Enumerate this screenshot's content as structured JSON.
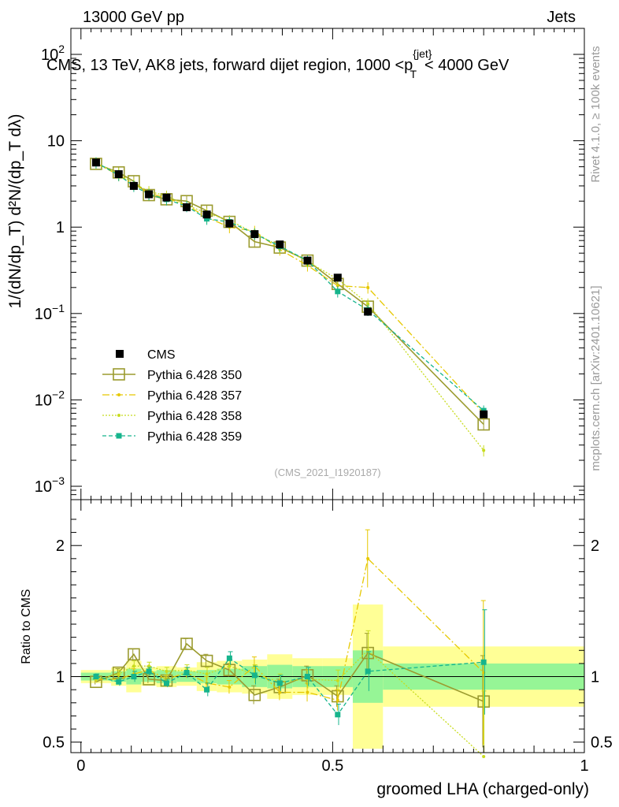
{
  "header": {
    "left": "13000 GeV pp",
    "right": "Jets"
  },
  "side_labels": {
    "rivet": "Rivet 4.1.0, ≥ 100k events",
    "source": "mcplots.cern.ch [arXiv:2401.10621]"
  },
  "colors": {
    "cms": "#000000",
    "p350": "#9b9b2f",
    "p357": "#e6c800",
    "p358": "#c8dc1e",
    "p359": "#16b48c",
    "band_outer": "#ffff96",
    "band_inner": "#96f596"
  },
  "chart_data": [
    {
      "type": "line",
      "scale": "log",
      "title": "CMS, 13 TeV, AK8 jets, forward dijet region, 1000 <p",
      "title_sup": "{jet}",
      "title_sub": "T",
      "title_end": "< 4000 GeV",
      "ylabel": "1/(dN/dp_T) d²N/(dp_T dλ)",
      "ylim": [
        0.0007,
        200
      ],
      "xlim": [
        -0.02,
        1.0
      ],
      "yticks": [
        {
          "v": 0.001,
          "m": "10",
          "e": "−3"
        },
        {
          "v": 0.01,
          "m": "10",
          "e": "−2"
        },
        {
          "v": 0.1,
          "m": "10",
          "e": "−1"
        },
        {
          "v": 1,
          "m": "1",
          "e": ""
        },
        {
          "v": 10,
          "m": "10",
          "e": ""
        },
        {
          "v": 100,
          "m": "10",
          "e": "2"
        }
      ],
      "watermark": "(CMS_2021_I1920187)",
      "x": [
        0.03,
        0.075,
        0.105,
        0.135,
        0.17,
        0.21,
        0.25,
        0.295,
        0.345,
        0.395,
        0.45,
        0.51,
        0.57,
        0.8
      ],
      "series": [
        {
          "name": "CMS",
          "values": [
            5.6,
            4.1,
            3.0,
            2.4,
            2.2,
            1.7,
            1.4,
            1.1,
            0.83,
            0.63,
            0.41,
            0.26,
            0.105,
            0.0068
          ]
        },
        {
          "name": "Pythia 6.428 350",
          "values": [
            5.4,
            4.3,
            3.4,
            2.35,
            2.1,
            2.0,
            1.55,
            1.15,
            0.68,
            0.58,
            0.41,
            0.22,
            0.12,
            0.0052
          ]
        },
        {
          "name": "Pythia 6.428 357",
          "values": [
            5.5,
            4.0,
            3.1,
            2.5,
            2.15,
            1.8,
            1.3,
            1.0,
            0.9,
            0.55,
            0.36,
            0.21,
            0.2,
            0.007
          ]
        },
        {
          "name": "Pythia 6.428 358",
          "values": [
            5.5,
            4.2,
            3.2,
            2.6,
            2.3,
            1.8,
            1.45,
            1.2,
            0.85,
            0.6,
            0.4,
            0.25,
            0.13,
            0.0026
          ]
        },
        {
          "name": "Pythia 6.428 359",
          "values": [
            5.6,
            4.0,
            3.0,
            2.4,
            2.1,
            1.75,
            1.25,
            1.15,
            0.84,
            0.6,
            0.41,
            0.18,
            0.11,
            0.0075
          ]
        }
      ]
    },
    {
      "type": "line",
      "ylabel": "Ratio to CMS",
      "xlabel": "groomed LHA (charged-only)",
      "ylim": [
        0.42,
        2.35
      ],
      "xlim": [
        -0.02,
        1.0
      ],
      "yticks": [
        0.5,
        1,
        2
      ],
      "xticks": [
        {
          "v": 0,
          "label": "0"
        },
        {
          "v": 0.5,
          "label": "0.5"
        },
        {
          "v": 1,
          "label": "1"
        }
      ],
      "bins": [
        0.0,
        0.06,
        0.09,
        0.12,
        0.15,
        0.19,
        0.23,
        0.27,
        0.32,
        0.37,
        0.42,
        0.48,
        0.54,
        0.6,
        1.0
      ],
      "band_outer": [
        0.05,
        0.07,
        0.12,
        0.07,
        0.08,
        0.07,
        0.11,
        0.12,
        0.13,
        0.17,
        0.14,
        0.14,
        0.55,
        0.23
      ],
      "band_inner": [
        0.03,
        0.04,
        0.06,
        0.04,
        0.05,
        0.04,
        0.05,
        0.06,
        0.08,
        0.09,
        0.08,
        0.08,
        0.2,
        0.1
      ],
      "x": [
        0.03,
        0.075,
        0.105,
        0.135,
        0.17,
        0.21,
        0.25,
        0.295,
        0.345,
        0.395,
        0.45,
        0.51,
        0.57,
        0.8
      ],
      "series": [
        {
          "name": "Pythia 6.428 350",
          "values": [
            0.96,
            1.03,
            1.17,
            0.98,
            0.97,
            1.25,
            1.12,
            1.05,
            0.86,
            0.92,
            1.01,
            0.85,
            1.18,
            0.81
          ]
        },
        {
          "name": "Pythia 6.428 357",
          "values": [
            0.98,
            0.98,
            1.02,
            1.05,
            0.98,
            1.03,
            0.95,
            0.92,
            1.08,
            0.88,
            0.88,
            0.82,
            1.9,
            1.03
          ]
        },
        {
          "name": "Pythia 6.428 358",
          "values": [
            0.98,
            1.02,
            1.08,
            1.08,
            1.04,
            1.05,
            1.02,
            1.08,
            1.02,
            0.96,
            0.98,
            0.97,
            1.2,
            0.39
          ]
        },
        {
          "name": "Pythia 6.428 359",
          "values": [
            1.0,
            0.96,
            1.0,
            1.04,
            0.95,
            1.03,
            0.9,
            1.14,
            1.01,
            0.95,
            1.0,
            0.71,
            1.04,
            1.11
          ]
        }
      ],
      "errors": [
        [
          0.02,
          0.03,
          0.04,
          0.03,
          0.03,
          0.04,
          0.05,
          0.05,
          0.07,
          0.06,
          0.07,
          0.08,
          0.15,
          0.35
        ],
        [
          0.02,
          0.03,
          0.04,
          0.03,
          0.03,
          0.04,
          0.05,
          0.05,
          0.07,
          0.06,
          0.07,
          0.08,
          0.22,
          0.55
        ],
        [
          0.02,
          0.03,
          0.04,
          0.03,
          0.03,
          0.04,
          0.05,
          0.05,
          0.07,
          0.06,
          0.07,
          0.08,
          0.15,
          0.5
        ],
        [
          0.02,
          0.03,
          0.04,
          0.03,
          0.03,
          0.04,
          0.05,
          0.05,
          0.07,
          0.06,
          0.07,
          0.08,
          0.15,
          0.4
        ]
      ]
    }
  ]
}
